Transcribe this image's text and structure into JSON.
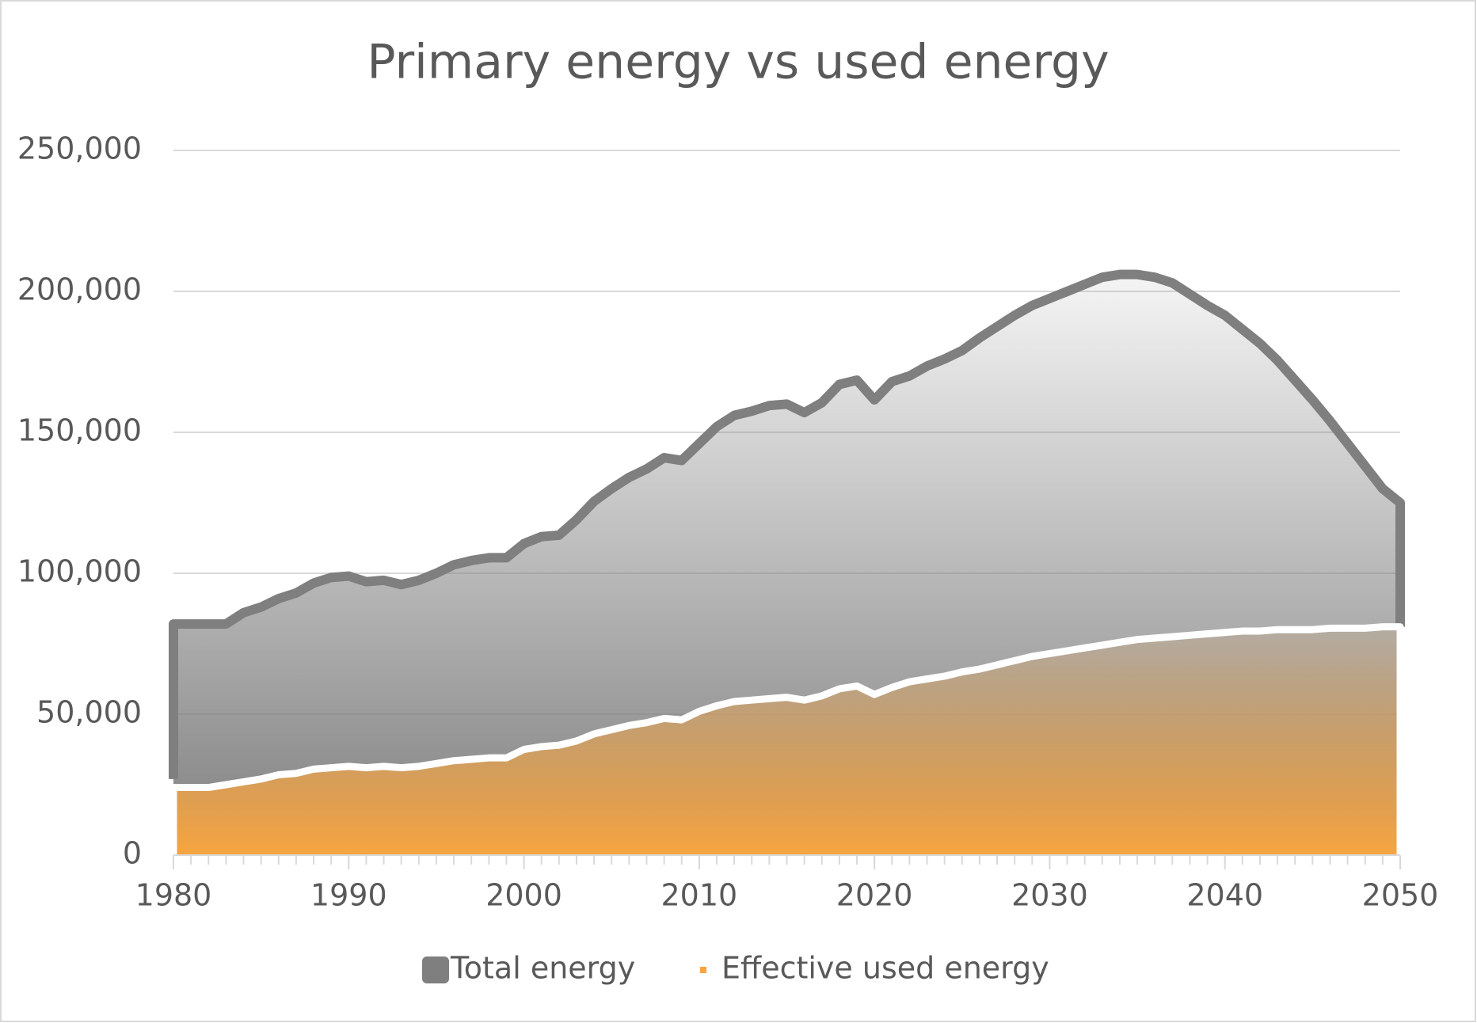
{
  "chart_data": {
    "type": "area",
    "title": "Primary energy vs used energy",
    "x": [
      1980,
      1981,
      1982,
      1983,
      1984,
      1985,
      1986,
      1987,
      1988,
      1989,
      1990,
      1991,
      1992,
      1993,
      1994,
      1995,
      1996,
      1997,
      1998,
      1999,
      2000,
      2001,
      2002,
      2003,
      2004,
      2005,
      2006,
      2007,
      2008,
      2009,
      2010,
      2011,
      2012,
      2013,
      2014,
      2015,
      2016,
      2017,
      2018,
      2019,
      2020,
      2021,
      2022,
      2023,
      2024,
      2025,
      2026,
      2027,
      2028,
      2029,
      2030,
      2031,
      2032,
      2033,
      2034,
      2035,
      2036,
      2037,
      2038,
      2039,
      2040,
      2041,
      2042,
      2043,
      2044,
      2045,
      2046,
      2047,
      2048,
      2049,
      2050
    ],
    "series": [
      {
        "name": "Total energy",
        "color": "#7f7f7f",
        "values": [
          82000,
          82000,
          82000,
          82000,
          86000,
          88000,
          91000,
          93000,
          96500,
          98500,
          99000,
          97000,
          97500,
          96000,
          97500,
          100000,
          103000,
          104500,
          105500,
          105500,
          110500,
          113000,
          113500,
          119000,
          125500,
          130000,
          134000,
          137000,
          141000,
          140000,
          146000,
          152000,
          156000,
          157500,
          159500,
          160000,
          157000,
          160500,
          167000,
          168500,
          161500,
          168000,
          170000,
          173500,
          176000,
          179000,
          183500,
          187500,
          191500,
          195000,
          197500,
          200000,
          202500,
          205000,
          206000,
          206000,
          205000,
          203000,
          199000,
          195000,
          191500,
          186500,
          181500,
          175500,
          168500,
          161500,
          154000,
          146000,
          138000,
          130000,
          125000
        ]
      },
      {
        "name": "Effective used energy",
        "color": "#f7a541",
        "values": [
          24000,
          24000,
          24000,
          25000,
          26000,
          27000,
          28500,
          29000,
          30500,
          31000,
          31500,
          31000,
          31500,
          31000,
          31500,
          32500,
          33500,
          34000,
          34500,
          34500,
          37500,
          38500,
          39000,
          40500,
          43000,
          44500,
          46000,
          47000,
          48500,
          48000,
          51000,
          53000,
          54500,
          55000,
          55500,
          56000,
          55000,
          56500,
          59000,
          60000,
          57000,
          59500,
          61500,
          62500,
          63500,
          65000,
          66000,
          67500,
          69000,
          70500,
          71500,
          72500,
          73500,
          74500,
          75500,
          76500,
          77000,
          77500,
          78000,
          78500,
          79000,
          79500,
          79500,
          80000,
          80000,
          80000,
          80500,
          80500,
          80500,
          81000,
          81000
        ]
      }
    ],
    "xlim": [
      1980,
      2050
    ],
    "xticks": [
      1980,
      1990,
      2000,
      2010,
      2020,
      2030,
      2040,
      2050
    ],
    "ylim": [
      0,
      250000
    ],
    "yticks": [
      0,
      {
        "value": 50000,
        "label": "50,000"
      },
      {
        "value": 100000,
        "label": "100,000"
      },
      {
        "value": 150000,
        "label": "150,000"
      },
      {
        "value": 200000,
        "label": "200,000"
      },
      {
        "value": 250000,
        "label": "250,000"
      }
    ],
    "grid": true
  }
}
